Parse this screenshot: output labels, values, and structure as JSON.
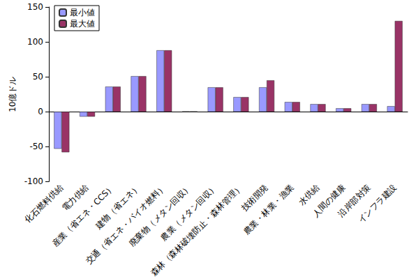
{
  "chart_data": {
    "type": "bar",
    "y_label": "10億ドル",
    "categories": [
      "化石燃料供給",
      "電力供給",
      "産業（省エネ・CCS）",
      "建物（省エネ）",
      "交通（省エネ・バイオ燃料）",
      "廃棄物（メタン回収）",
      "農業（メタン回収）",
      "森林（森林破壊防止・森林管理）",
      "技術開発",
      "農業・林業・漁業",
      "水供給",
      "人間の健康",
      "沿岸部対策",
      "インフラ建設"
    ],
    "series": [
      {
        "name": "最小値",
        "color": "#9999ff",
        "values": [
          -53,
          -7,
          36,
          51,
          88,
          0.5,
          35,
          21,
          35,
          14,
          11,
          5,
          11,
          8
        ]
      },
      {
        "name": "最大値",
        "color": "#993366",
        "values": [
          -58,
          -7,
          36,
          51,
          88,
          0.5,
          35,
          21,
          45,
          14,
          11,
          5,
          11,
          130
        ]
      }
    ],
    "ylim": [
      -100,
      150
    ],
    "yticks": [
      -100,
      -50,
      0,
      50,
      100,
      150
    ],
    "grid": false,
    "legend": "upper left"
  }
}
